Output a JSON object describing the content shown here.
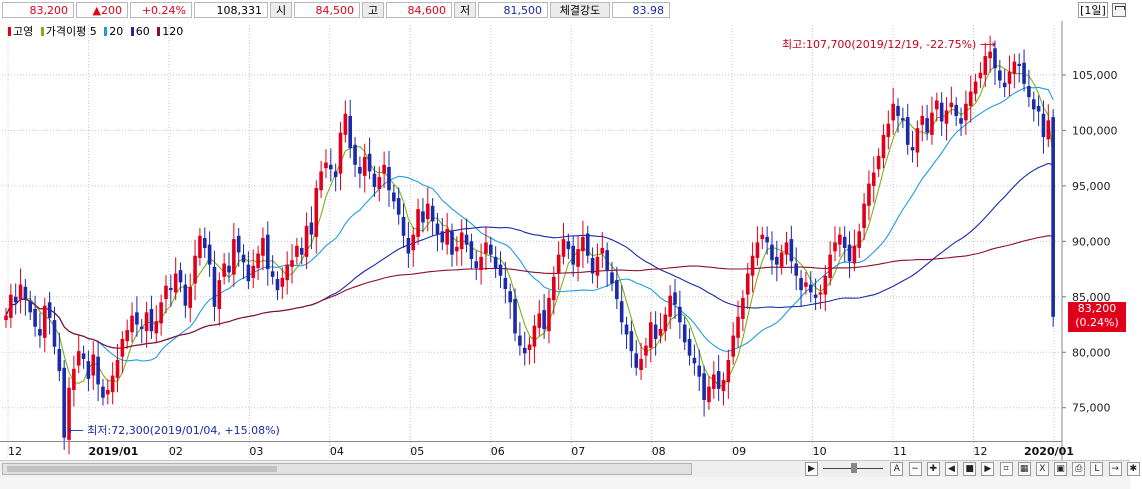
{
  "quote": {
    "price": "83,200",
    "change": "▲200",
    "change_pct": "+0.24%",
    "volume": "108,331",
    "open_label": "시",
    "open": "84,500",
    "high_label": "고",
    "high": "84,600",
    "low_label": "저",
    "low": "81,500",
    "strength_label": "체결강도",
    "strength": "83.98"
  },
  "period_label": "[1일]",
  "legend": [
    {
      "label": "고영",
      "color": "#e0001a"
    },
    {
      "label": "가격이평 5",
      "color": "#7bb31c"
    },
    {
      "label": "20",
      "color": "#1e9ee0"
    },
    {
      "label": "60",
      "color": "#1a2aa8"
    },
    {
      "label": "120",
      "color": "#8b1030"
    }
  ],
  "current_price_tag": {
    "price": "83,200",
    "pct": "(0.24%)"
  },
  "chart_data": {
    "type": "candlestick",
    "title": "고영",
    "ylim": [
      72000,
      109500
    ],
    "y_ticks": [
      "75,000",
      "80,000",
      "85,000",
      "90,000",
      "95,000",
      "100,000",
      "105,000"
    ],
    "y_tick_values": [
      75000,
      80000,
      85000,
      90000,
      95000,
      100000,
      105000
    ],
    "x_tick_labels": [
      "12",
      "2019/01",
      "02",
      "03",
      "04",
      "05",
      "06",
      "07",
      "08",
      "09",
      "10",
      "11",
      "12",
      "2020/01"
    ],
    "grid": true,
    "annotations": {
      "max_label": "최고:107,700(2019/12/19, -22.75%)",
      "min_label": "최저:72,300(2019/01/04, +15.08%)"
    },
    "close_series": [
      83300,
      85200,
      84500,
      86100,
      84800,
      83600,
      82300,
      81500,
      84200,
      83100,
      80500,
      78300,
      72300,
      76800,
      78500,
      80100,
      79400,
      77600,
      79800,
      77100,
      75900,
      76600,
      77900,
      79300,
      81200,
      82000,
      83300,
      82500,
      82100,
      83600,
      81900,
      82800,
      84500,
      86000,
      85600,
      87100,
      86300,
      84200,
      85900,
      88700,
      90500,
      89400,
      87900,
      84100,
      86500,
      88000,
      87200,
      90200,
      89000,
      88100,
      86400,
      87800,
      88900,
      90300,
      87500,
      86800,
      85600,
      86700,
      87900,
      88300,
      89600,
      88800,
      91400,
      90600,
      94800,
      96300,
      97100,
      96500,
      95800,
      99800,
      101500,
      98400,
      96900,
      96100,
      97600,
      96300,
      94900,
      95800,
      96900,
      94600,
      93600,
      92400,
      90500,
      88900,
      90600,
      92900,
      91700,
      93400,
      91800,
      90600,
      89900,
      91100,
      88800,
      89500,
      90800,
      89700,
      88400,
      87600,
      88600,
      89900,
      88800,
      87600,
      86900,
      85700,
      84500,
      81700,
      80600,
      79900,
      80700,
      82400,
      83500,
      82100,
      84900,
      86800,
      88800,
      90200,
      89300,
      87900,
      89300,
      90400,
      88700,
      87100,
      88600,
      89400,
      87400,
      86200,
      84800,
      82700,
      81600,
      80100,
      78600,
      79400,
      80600,
      82700,
      81200,
      82100,
      83400,
      85100,
      84300,
      82700,
      80900,
      79700,
      79000,
      77800,
      75700,
      76900,
      78000,
      76700,
      77500,
      79300,
      81500,
      83200,
      84900,
      87100,
      88700,
      89900,
      90600,
      89900,
      88300,
      87900,
      89000,
      89900,
      88200,
      86900,
      85600,
      86300,
      85400,
      84900,
      85400,
      86900,
      88800,
      89900,
      90600,
      89400,
      88200,
      89600,
      90900,
      93400,
      95200,
      96200,
      97700,
      99600,
      100600,
      102400,
      101300,
      100900,
      98700,
      98200,
      100200,
      101300,
      99800,
      101600,
      102700,
      100800,
      101800,
      102500,
      101300,
      100600,
      102400,
      103500,
      104400,
      105200,
      106700,
      107100,
      105600,
      104500,
      103900,
      105300,
      106200,
      105800,
      104200,
      103000,
      101900,
      101700,
      99400,
      100900,
      83200
    ]
  }
}
